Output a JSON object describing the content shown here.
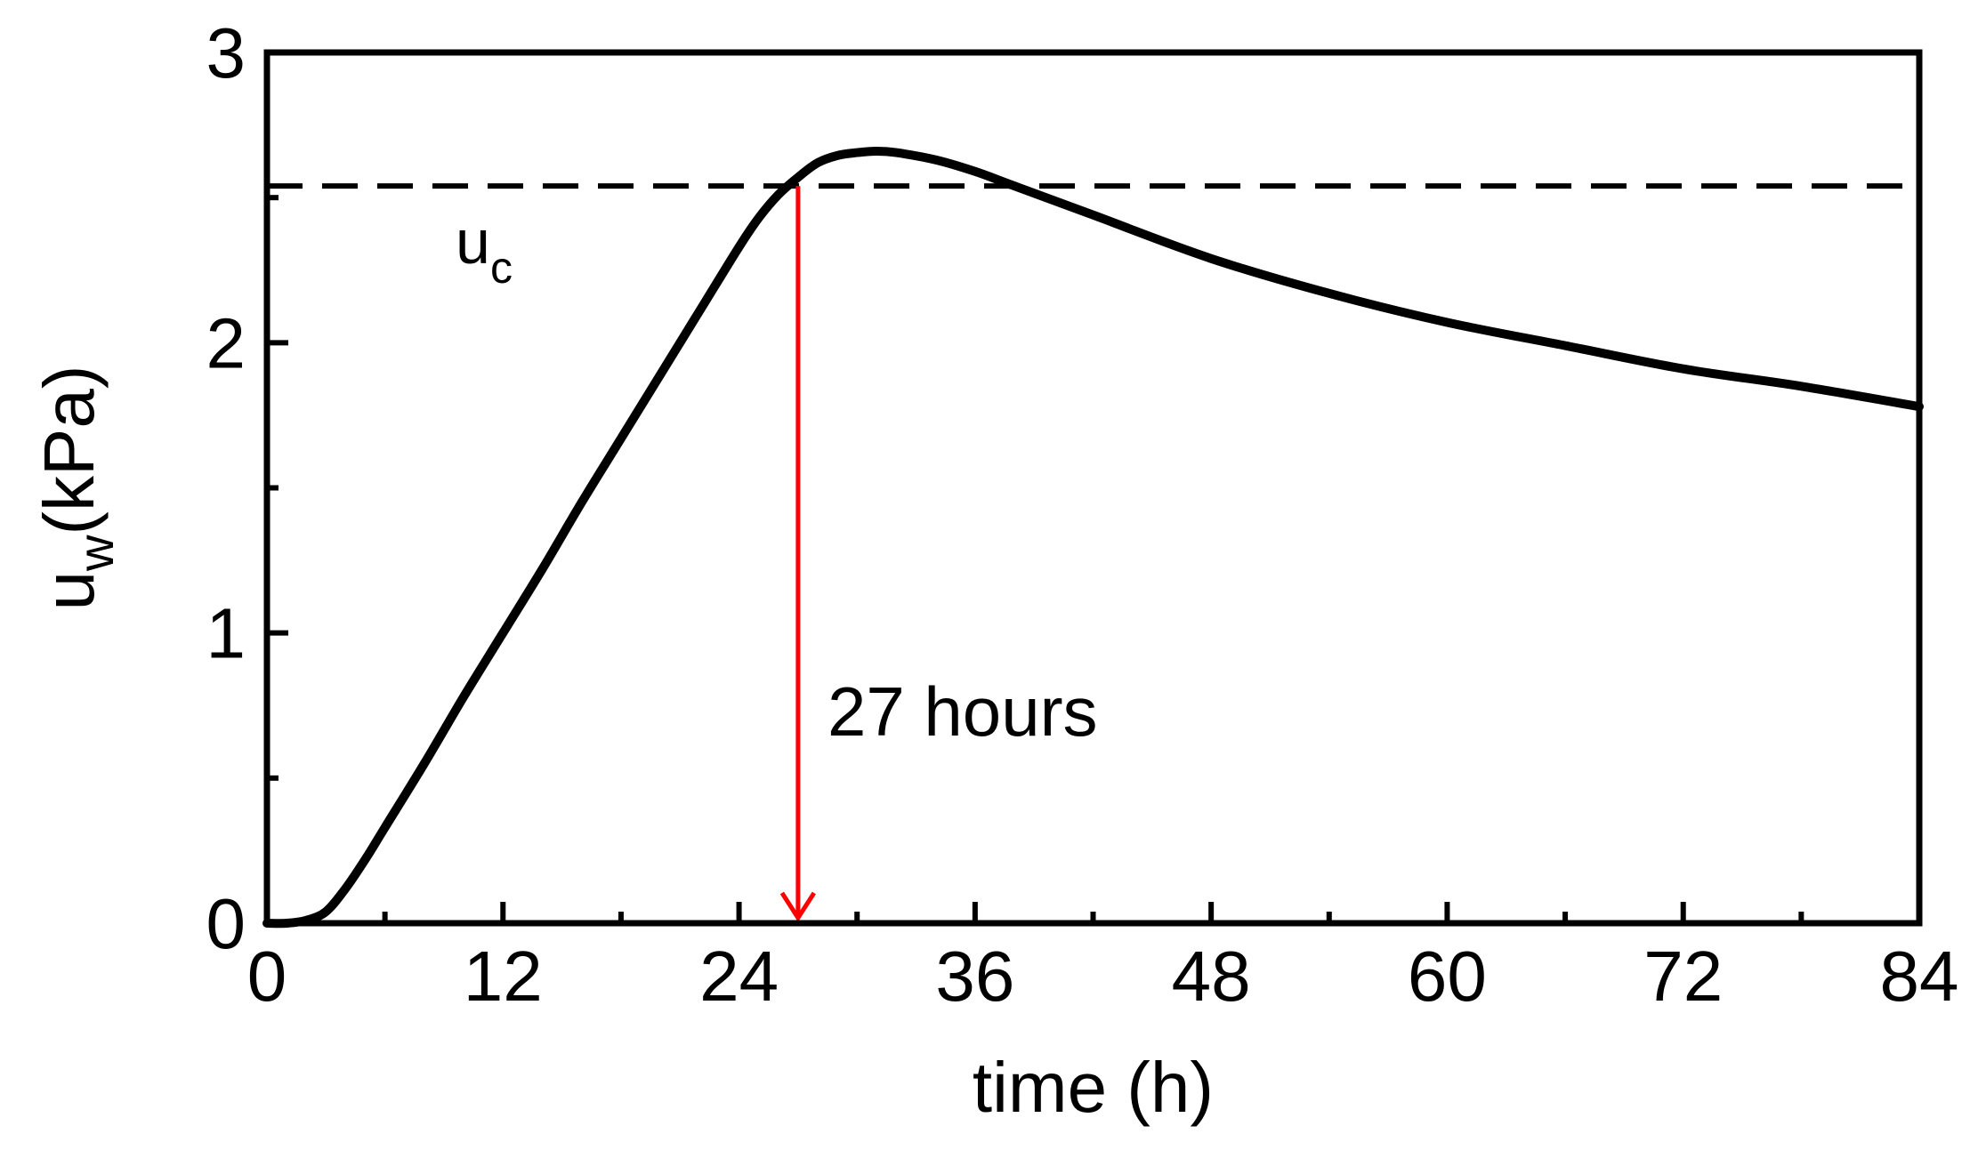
{
  "chart_data": {
    "type": "line",
    "xlabel": "time (h)",
    "ylabel": {
      "main": "u",
      "sub": "w",
      "unit": "(kPa)"
    },
    "xlim": [
      0,
      84
    ],
    "ylim": [
      0,
      3
    ],
    "x_ticks": [
      0,
      12,
      24,
      36,
      48,
      60,
      72,
      84
    ],
    "x_minor_step": 6,
    "y_ticks": [
      0,
      1,
      2,
      3
    ],
    "y_minor_step": 0.5,
    "grid": false,
    "legend": "none",
    "series": [
      {
        "color": "#000000",
        "style": "solid",
        "x": [
          0,
          1,
          2,
          3,
          4,
          5,
          6,
          8,
          10,
          12,
          14,
          16,
          18,
          20,
          22,
          24,
          25,
          26,
          27,
          28,
          29,
          30,
          31,
          32,
          34,
          36,
          38,
          42,
          48,
          54,
          60,
          66,
          72,
          78,
          84
        ],
        "y": [
          0,
          0,
          0.01,
          0.04,
          0.12,
          0.22,
          0.33,
          0.55,
          0.78,
          1.0,
          1.22,
          1.45,
          1.67,
          1.89,
          2.11,
          2.33,
          2.43,
          2.51,
          2.57,
          2.62,
          2.645,
          2.655,
          2.66,
          2.655,
          2.63,
          2.59,
          2.54,
          2.44,
          2.29,
          2.17,
          2.07,
          1.99,
          1.91,
          1.85,
          1.78
        ]
      }
    ],
    "threshold": {
      "label_main": "u",
      "label_sub": "c",
      "value": 2.54,
      "color": "#000000",
      "style": "dashed"
    },
    "annotation": {
      "text": "27 hours",
      "x": 27,
      "y_from": 2.54,
      "y_to": 0,
      "color": "#ff0000"
    }
  }
}
